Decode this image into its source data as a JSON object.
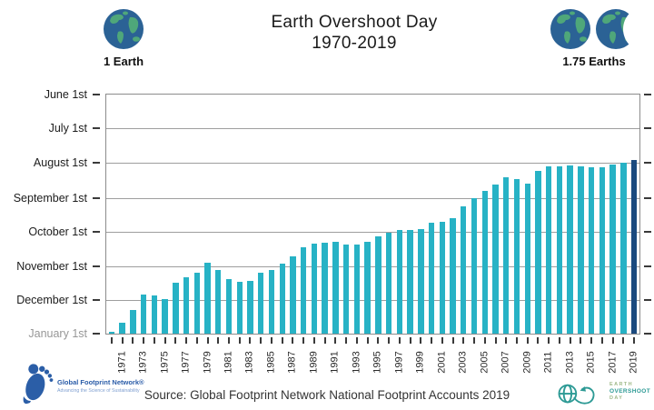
{
  "header": {
    "one_earth_label": "1 Earth",
    "title_line1": "Earth Overshoot Day",
    "title_line2": "1970-2019",
    "earths_label": "1.75 Earths"
  },
  "chart_data": {
    "type": "bar",
    "title": "Earth Overshoot Day 1970-2019",
    "y_axis_labels": [
      "June 1st",
      "July 1st",
      "August 1st",
      "September 1st",
      "October 1st",
      "November 1st",
      "December 1st",
      "January 1st"
    ],
    "y_axis_note": "Inverted date axis: top = June 1st, bottom baseline = January 1st (bar top = overshoot date)",
    "x_tick_labels": [
      "1971",
      "1973",
      "1975",
      "1977",
      "1979",
      "1981",
      "1983",
      "1985",
      "1987",
      "1989",
      "1991",
      "1993",
      "1995",
      "1997",
      "1999",
      "2001",
      "2003",
      "2005",
      "2007",
      "2009",
      "2011",
      "2013",
      "2015",
      "2017",
      "2019"
    ],
    "years": [
      1970,
      1971,
      1972,
      1973,
      1974,
      1975,
      1976,
      1977,
      1978,
      1979,
      1980,
      1981,
      1982,
      1983,
      1984,
      1985,
      1986,
      1987,
      1988,
      1989,
      1990,
      1991,
      1992,
      1993,
      1994,
      1995,
      1996,
      1997,
      1998,
      1999,
      2000,
      2001,
      2002,
      2003,
      2004,
      2005,
      2006,
      2007,
      2008,
      2009,
      2010,
      2011,
      2012,
      2013,
      2014,
      2015,
      2016,
      2017,
      2018,
      2019
    ],
    "overshoot_dates": [
      "Dec 29",
      "Dec 21",
      "Dec 10",
      "Nov 26",
      "Nov 27",
      "Nov 30",
      "Nov 16",
      "Nov 11",
      "Nov 7",
      "Oct 29",
      "Nov 4",
      "Nov 12",
      "Nov 15",
      "Nov 14",
      "Nov 7",
      "Nov 4",
      "Oct 30",
      "Oct 23",
      "Oct 15",
      "Oct 12",
      "Oct 11",
      "Oct 10",
      "Oct 13",
      "Oct 13",
      "Oct 10",
      "Oct 5",
      "Oct 2",
      "Sep 30",
      "Sep 30",
      "Sep 29",
      "Sep 23",
      "Sep 22",
      "Sep 19",
      "Sep 9",
      "Sep 1",
      "Aug 26",
      "Aug 20",
      "Aug 14",
      "Aug 15",
      "Aug 19",
      "Aug 8",
      "Aug 4",
      "Aug 4",
      "Aug 3",
      "Aug 4",
      "Aug 5",
      "Aug 5",
      "Aug 2",
      "Aug 1",
      "Jul 29"
    ],
    "bar_color": "#27b2c5",
    "highlight_year": 2019,
    "highlight_color": "#1b4a7e",
    "grid": "on",
    "legend": "none"
  },
  "footer": {
    "source": "Source: Global Footprint Network National Footprint Accounts 2019",
    "gfn_logo": {
      "name": "Global Footprint Network®",
      "tagline": "Advancing the Science of Sustainability"
    },
    "eod_logo": {
      "line1": "EARTH",
      "line2": "OVERSHOOT",
      "line3": "DAY"
    }
  },
  "icons": {
    "earth-icon": "blue-green globe",
    "partial-earth-icon": "globe clipped to three quarters",
    "gfn-footprint-icon": "blue footprint made of leaves",
    "eod-symbol-icon": "globe with looping arrow"
  }
}
